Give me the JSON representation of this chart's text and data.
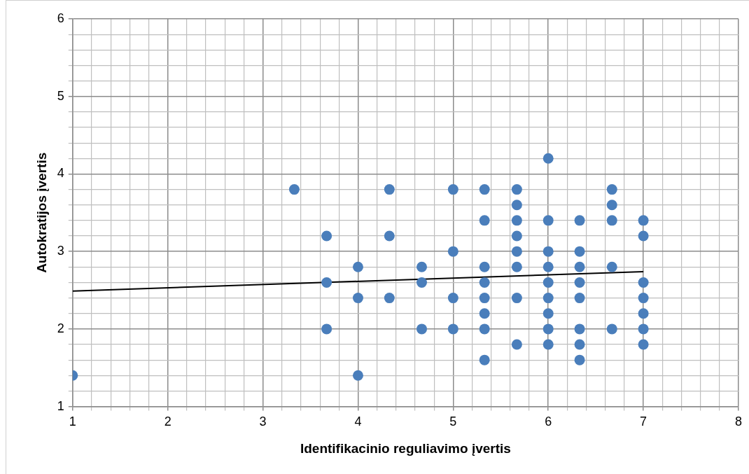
{
  "chart_data": {
    "type": "scatter",
    "xlabel": "Identifikacinio reguliavimo įvertis",
    "ylabel": "Autokratijos įvertis",
    "xlim": [
      1,
      8
    ],
    "ylim": [
      1,
      6
    ],
    "xticks": [
      1,
      {
        "value": 1.2,
        "label": null
      },
      {
        "value": 1.4,
        "label": null
      },
      {
        "value": 1.6,
        "label": null
      },
      {
        "value": 1.8,
        "label": null
      },
      2,
      {
        "value": 2.2,
        "label": null
      },
      {
        "value": 2.4,
        "label": null
      },
      {
        "value": 2.6,
        "label": null
      },
      {
        "value": 2.8,
        "label": null
      },
      3,
      {
        "value": 3.2,
        "label": null
      },
      {
        "value": 3.4,
        "label": null
      },
      {
        "value": 3.6,
        "label": null
      },
      {
        "value": 3.8,
        "label": null
      },
      4,
      {
        "value": 4.2,
        "label": null
      },
      {
        "value": 4.4,
        "label": null
      },
      {
        "value": 4.6,
        "label": null
      },
      {
        "value": 4.8,
        "label": null
      },
      5,
      {
        "value": 5.2,
        "label": null
      },
      {
        "value": 5.4,
        "label": null
      },
      {
        "value": 5.6,
        "label": null
      },
      {
        "value": 5.8,
        "label": null
      },
      6,
      {
        "value": 6.2,
        "label": null
      },
      {
        "value": 6.4,
        "label": null
      },
      {
        "value": 6.6,
        "label": null
      },
      {
        "value": 6.8,
        "label": null
      },
      7,
      {
        "value": 7.2,
        "label": null
      },
      {
        "value": 7.4,
        "label": null
      },
      {
        "value": 7.6,
        "label": null
      },
      {
        "value": 7.8,
        "label": null
      },
      8
    ],
    "yticks": [
      1,
      {
        "value": 1.2,
        "label": null
      },
      {
        "value": 1.4,
        "label": null
      },
      {
        "value": 1.6,
        "label": null
      },
      {
        "value": 1.8,
        "label": null
      },
      2,
      {
        "value": 2.2,
        "label": null
      },
      {
        "value": 2.4,
        "label": null
      },
      {
        "value": 2.6,
        "label": null
      },
      {
        "value": 2.8,
        "label": null
      },
      3,
      {
        "value": 3.2,
        "label": null
      },
      {
        "value": 3.4,
        "label": null
      },
      {
        "value": 3.6,
        "label": null
      },
      {
        "value": 3.8,
        "label": null
      },
      4,
      {
        "value": 4.2,
        "label": null
      },
      {
        "value": 4.4,
        "label": null
      },
      {
        "value": 4.6,
        "label": null
      },
      {
        "value": 4.8,
        "label": null
      },
      5,
      {
        "value": 5.2,
        "label": null
      },
      {
        "value": 5.4,
        "label": null
      },
      {
        "value": 5.6,
        "label": null
      },
      {
        "value": 5.8,
        "label": null
      },
      6
    ],
    "grid": true,
    "marker": "circle",
    "series": [
      {
        "color": "#4a7ebb",
        "x": [
          1,
          3.33,
          3.67,
          3.67,
          3.67,
          4,
          4,
          4,
          4.33,
          4.33,
          4.33,
          4.67,
          4.67,
          4.67,
          5,
          5,
          5,
          5,
          5.33,
          5.33,
          5.33,
          5.33,
          5.33,
          5.33,
          5.33,
          5.33,
          5.67,
          5.67,
          5.67,
          5.67,
          5.67,
          5.67,
          5.67,
          5.67,
          6,
          6,
          6,
          6,
          6,
          6,
          6,
          6,
          6,
          6.33,
          6.33,
          6.33,
          6.33,
          6.33,
          6.33,
          6.33,
          6.33,
          6.67,
          6.67,
          6.67,
          6.67,
          6.67,
          7,
          7,
          7,
          7,
          7,
          7,
          7
        ],
        "values": [
          1.4,
          3.8,
          3.2,
          2.6,
          2.0,
          2.8,
          2.4,
          1.4,
          3.8,
          3.2,
          2.4,
          2.8,
          2.6,
          2.0,
          3.8,
          3.0,
          2.4,
          2.0,
          3.8,
          3.4,
          2.8,
          2.6,
          2.4,
          2.2,
          2.0,
          1.6,
          3.8,
          3.6,
          3.4,
          3.2,
          3.0,
          2.8,
          2.4,
          1.8,
          4.2,
          3.4,
          3.0,
          2.8,
          2.6,
          2.4,
          2.2,
          2.0,
          1.8,
          3.4,
          3.0,
          2.8,
          2.6,
          2.4,
          2.0,
          1.8,
          1.6,
          3.8,
          3.6,
          3.4,
          2.8,
          2.0,
          3.4,
          3.2,
          2.6,
          2.4,
          2.2,
          2.0,
          1.8
        ]
      },
      {
        "type": "line",
        "color": "#000000",
        "marker": "none",
        "x": [
          1,
          7
        ],
        "values": [
          2.49,
          2.74
        ]
      }
    ]
  }
}
